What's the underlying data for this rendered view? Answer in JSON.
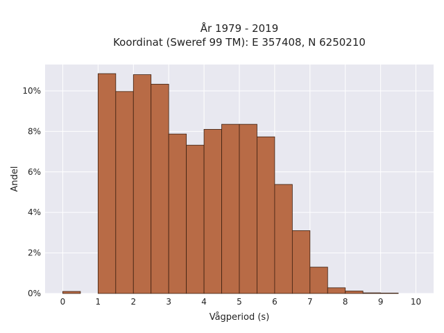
{
  "chart_data": {
    "type": "bar",
    "title": "År 1979 - 2019",
    "subtitle": "Koordinat (Sweref 99 TM): E 357408, N 6250210",
    "xlabel": "Vågperiod (s)",
    "ylabel": "Andel",
    "bin_width": 0.5,
    "x_ticks": [
      0,
      1,
      2,
      3,
      4,
      5,
      6,
      7,
      8,
      9,
      10
    ],
    "x_tick_labels": [
      "0",
      "1",
      "2",
      "3",
      "4",
      "5",
      "6",
      "7",
      "8",
      "9",
      "10"
    ],
    "xlim": [
      -0.5,
      10.5
    ],
    "ylim": [
      0,
      11.3
    ],
    "y_ticks": [
      0,
      2,
      4,
      6,
      8,
      10
    ],
    "y_tick_labels": [
      "0%",
      "2%",
      "4%",
      "6%",
      "8%",
      "10%"
    ],
    "bins": [
      {
        "x0": 0.0,
        "x1": 0.5,
        "value": 0.1
      },
      {
        "x0": 1.0,
        "x1": 1.5,
        "value": 10.85
      },
      {
        "x0": 1.5,
        "x1": 2.0,
        "value": 9.97
      },
      {
        "x0": 2.0,
        "x1": 2.5,
        "value": 10.8
      },
      {
        "x0": 2.5,
        "x1": 3.0,
        "value": 10.33
      },
      {
        "x0": 3.0,
        "x1": 3.5,
        "value": 7.87
      },
      {
        "x0": 3.5,
        "x1": 4.0,
        "value": 7.32
      },
      {
        "x0": 4.0,
        "x1": 4.5,
        "value": 8.1
      },
      {
        "x0": 4.5,
        "x1": 5.0,
        "value": 8.35
      },
      {
        "x0": 5.0,
        "x1": 5.5,
        "value": 8.35
      },
      {
        "x0": 5.5,
        "x1": 6.0,
        "value": 7.73
      },
      {
        "x0": 6.0,
        "x1": 6.5,
        "value": 5.38
      },
      {
        "x0": 6.5,
        "x1": 7.0,
        "value": 3.1
      },
      {
        "x0": 7.0,
        "x1": 7.5,
        "value": 1.3
      },
      {
        "x0": 7.5,
        "x1": 8.0,
        "value": 0.28
      },
      {
        "x0": 8.0,
        "x1": 8.5,
        "value": 0.12
      },
      {
        "x0": 8.5,
        "x1": 9.0,
        "value": 0.03
      },
      {
        "x0": 9.0,
        "x1": 9.5,
        "value": 0.02
      }
    ],
    "grid": true,
    "bar_color": "#b86b46",
    "bar_edge_color": "#3b1f10",
    "plot_background": "#e8e8f0",
    "grid_color": "#ffffff"
  }
}
